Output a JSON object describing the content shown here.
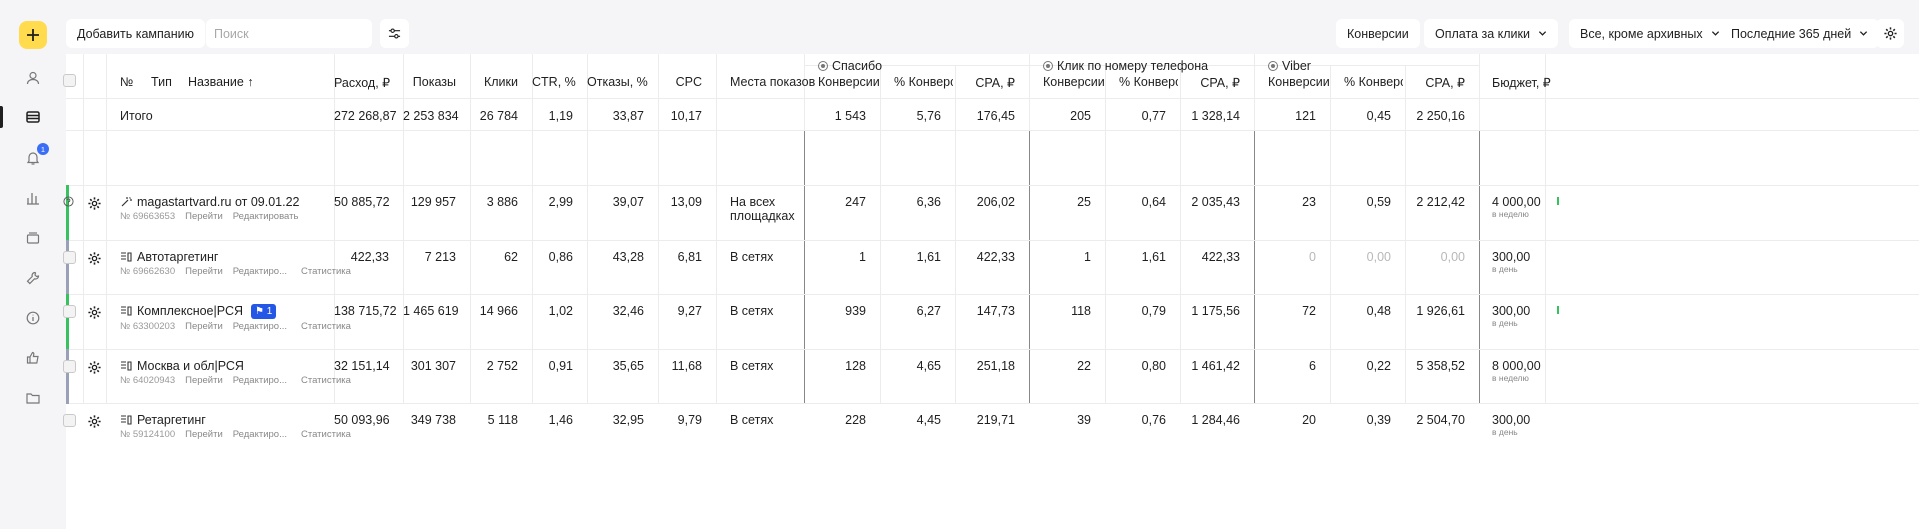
{
  "toolbar": {
    "add_campaign": "Добавить кампанию",
    "search_placeholder": "Поиск",
    "conversions": "Конверсии",
    "payment": "Оплата за клики",
    "filter": "Все, кроме архивных",
    "period": "Последние 365 дней"
  },
  "rail": {
    "notifications_badge": "1"
  },
  "groups": [
    {
      "title": "Спасибо"
    },
    {
      "title": "Клик по номеру телефона"
    },
    {
      "title": "Viber"
    }
  ],
  "headers": {
    "num": "№",
    "type": "Тип",
    "name": "Название ↑",
    "spend": "Расход, ₽",
    "impressions": "Показы",
    "clicks": "Клики",
    "ctr": "CTR, %",
    "bounces": "Отказы, %",
    "cpc": "CPC",
    "placements": "Места показов",
    "conv": "Конверсии",
    "conv_pct": "% Конверсий",
    "cpa": "CPA, ₽",
    "budget": "Бюджет, ₽"
  },
  "total": {
    "label": "Итого",
    "values": [
      "272 268,87",
      "2 253 834",
      "26 784",
      "1,19",
      "33,87",
      "10,17",
      "",
      "1 543",
      "5,76",
      "176,45",
      "205",
      "0,77",
      "1 328,14",
      "121",
      "0,45",
      "2 250,16"
    ]
  },
  "rows": [
    {
      "name": "magastartvard.ru от 09.01.22",
      "id": "№ 69663653",
      "links": [
        "Перейти",
        "Редактировать"
      ],
      "values": [
        "50 885,72",
        "129 957",
        "3 886",
        "2,99",
        "39,07",
        "13,09"
      ],
      "placement": [
        "На всех",
        "площадках"
      ],
      "goals": [
        "247",
        "6,36",
        "206,02",
        "25",
        "0,64",
        "2 035,43",
        "23",
        "0,59",
        "2 212,42"
      ],
      "budget": "4 000,00",
      "budget_period": "в неделю"
    },
    {
      "name": "Автотаргетинг",
      "id": "№ 69662630",
      "links": [
        "Перейти",
        "Редактиро...",
        "Статистика"
      ],
      "values": [
        "422,33",
        "7 213",
        "62",
        "0,86",
        "43,28",
        "6,81"
      ],
      "placement": [
        "В сетях"
      ],
      "goals": [
        "1",
        "1,61",
        "422,33",
        "1",
        "1,61",
        "422,33",
        "0",
        "0,00",
        "0,00"
      ],
      "budget": "300,00",
      "budget_period": "в день"
    },
    {
      "name": "Комплексное|РСЯ",
      "badge": "1",
      "id": "№ 63300203",
      "links": [
        "Перейти",
        "Редактиро...",
        "Статистика"
      ],
      "values": [
        "138 715,72",
        "1 465 619",
        "14 966",
        "1,02",
        "32,46",
        "9,27"
      ],
      "placement": [
        "В сетях"
      ],
      "goals": [
        "939",
        "6,27",
        "147,73",
        "118",
        "0,79",
        "1 175,56",
        "72",
        "0,48",
        "1 926,61"
      ],
      "budget": "300,00",
      "budget_period": "в день"
    },
    {
      "name": "Москва и обл|РСЯ",
      "id": "№ 64020943",
      "links": [
        "Перейти",
        "Редактиро...",
        "Статистика"
      ],
      "values": [
        "32 151,14",
        "301 307",
        "2 752",
        "0,91",
        "35,65",
        "11,68"
      ],
      "placement": [
        "В сетях"
      ],
      "goals": [
        "128",
        "4,65",
        "251,18",
        "22",
        "0,80",
        "1 461,42",
        "6",
        "0,22",
        "5 358,52"
      ],
      "budget": "8 000,00",
      "budget_period": "в неделю"
    },
    {
      "name": "Ретаргетинг",
      "id": "№ 59124100",
      "links": [
        "Перейти",
        "Редактиро...",
        "Статистика"
      ],
      "values": [
        "50 093,96",
        "349 738",
        "5 118",
        "1,46",
        "32,95",
        "9,79"
      ],
      "placement": [
        "В сетях"
      ],
      "goals": [
        "228",
        "4,45",
        "219,71",
        "39",
        "0,76",
        "1 284,46",
        "20",
        "0,39",
        "2 504,70"
      ],
      "budget": "300,00",
      "budget_period": "в день"
    }
  ],
  "colors": {
    "accent_yellow": "#ffdb4d",
    "active_green": "#38c15f",
    "paused_gray": "#9aa0b8",
    "badge_blue": "#2457e6"
  }
}
